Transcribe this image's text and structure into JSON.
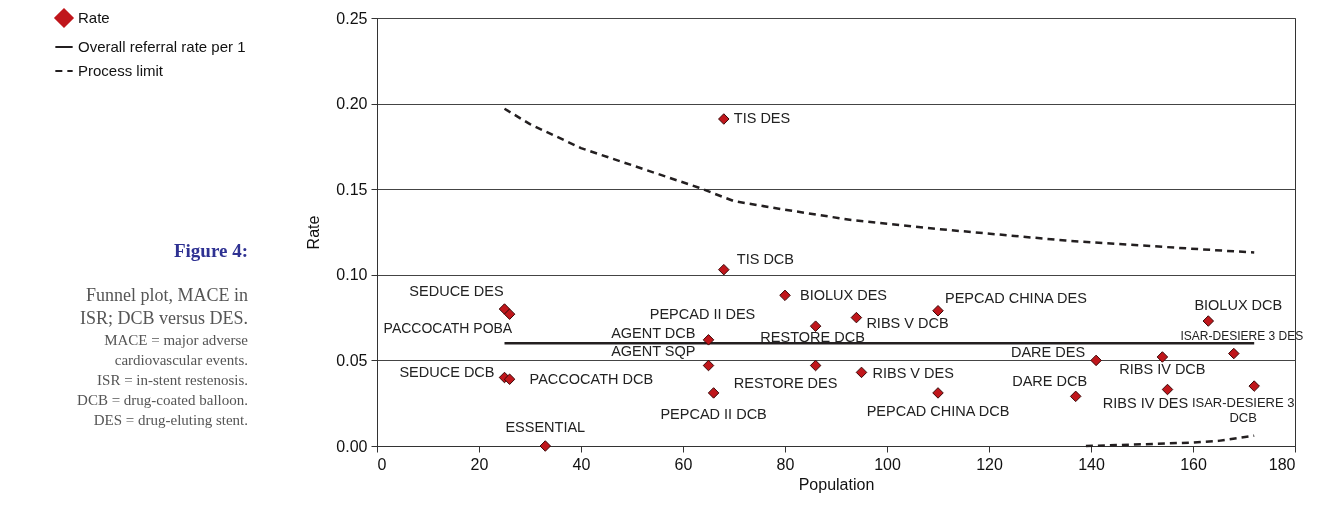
{
  "chart_data": {
    "type": "scatter",
    "title": "Figure 4:",
    "subtitle": "Funnel plot, MACE in ISR; DCB versus DES.",
    "xlabel": "Population",
    "ylabel": "Rate",
    "annotations": [
      {
        "text": "TIS DES",
        "x": 68,
        "y": 0.191
      },
      {
        "text": "TIS DCB",
        "x": 68,
        "y": 0.103
      },
      {
        "text": "SEDUCE DES",
        "x": 25,
        "y": 0.08
      },
      {
        "text": "PACCOCATH POBA",
        "x": 26,
        "y": 0.077
      },
      {
        "text": "SEDUCE DCB",
        "x": 25,
        "y": 0.04
      },
      {
        "text": "PACCOCATH DCB",
        "x": 26,
        "y": 0.039
      },
      {
        "text": "ESSENTIAL",
        "x": 33,
        "y": 0.0
      },
      {
        "text": "PEPCAD II DES",
        "x": 65,
        "y": 0.062
      },
      {
        "text": "AGENT DCB",
        "x": 65,
        "y": 0.062
      },
      {
        "text": "AGENT SQP",
        "x": 65,
        "y": 0.047
      },
      {
        "text": "PEPCAD II DCB",
        "x": 66,
        "y": 0.031
      },
      {
        "text": "BIOLUX DES",
        "x": 80,
        "y": 0.088
      },
      {
        "text": "RESTORE DCB",
        "x": 86,
        "y": 0.07
      },
      {
        "text": "RESTORE DES",
        "x": 86,
        "y": 0.047
      },
      {
        "text": "PEPCAD CHINA DES",
        "x": 110,
        "y": 0.079
      },
      {
        "text": "RIBS V DCB",
        "x": 94,
        "y": 0.075
      },
      {
        "text": "RIBS V DES",
        "x": 95,
        "y": 0.043
      },
      {
        "text": "PEPCAD CHINA DCB",
        "x": 110,
        "y": 0.031
      },
      {
        "text": "DARE DES",
        "x": 141,
        "y": 0.05
      },
      {
        "text": "DARE DCB",
        "x": 137,
        "y": 0.029
      },
      {
        "text": "RIBS IV DCB",
        "x": 154,
        "y": 0.052
      },
      {
        "text": "RIBS IV DES",
        "x": 155,
        "y": 0.033
      },
      {
        "text": "BIOLUX DCB",
        "x": 163,
        "y": 0.073
      },
      {
        "text": "ISAR-DESIERE 3 DES",
        "x": 168,
        "y": 0.054
      },
      {
        "text": "ISAR-DESIERE 3 DCB",
        "x": 172,
        "y": 0.035
      },
      "MACE = major adverse cardiovascular events.",
      "ISR = in-stent restenosis.",
      "DCB = drug-coated balloon.",
      "DES = drug-eluting stent."
    ],
    "series": [
      {
        "name": "Rate",
        "color": "#c0161b",
        "marker": "diamond",
        "x": [
          68,
          68,
          25,
          26,
          25,
          26,
          33,
          65,
          65,
          66,
          80,
          86,
          86,
          110,
          94,
          95,
          110,
          141,
          137,
          154,
          155,
          163,
          168,
          172
        ],
        "values": [
          0.191,
          0.103,
          0.08,
          0.077,
          0.04,
          0.039,
          0.0,
          0.062,
          0.047,
          0.031,
          0.088,
          0.07,
          0.047,
          0.079,
          0.075,
          0.043,
          0.031,
          0.05,
          0.029,
          0.052,
          0.033,
          0.073,
          0.054,
          0.035
        ]
      },
      {
        "name": "Overall referral rate per 1",
        "type": "line",
        "color": "#231f20",
        "line_style": "solid",
        "x": [
          25,
          172
        ],
        "values": [
          0.06,
          0.06
        ]
      },
      {
        "name": "Process limit",
        "type": "line",
        "color": "#231f20",
        "line_style": "dashed",
        "x": [
          25,
          30,
          40,
          53,
          63,
          70,
          80,
          93,
          109,
          135,
          161,
          172,
          null,
          139,
          150,
          160,
          165,
          172
        ],
        "values": [
          0.197,
          0.188,
          0.174,
          0.161,
          0.151,
          0.143,
          0.138,
          0.132,
          0.127,
          0.12,
          0.115,
          0.113,
          null,
          0.0,
          0.001,
          0.002,
          0.003,
          0.006
        ]
      }
    ],
    "xlim": [
      0,
      180
    ],
    "xticks": [
      0,
      20,
      40,
      60,
      80,
      100,
      120,
      140,
      160,
      180
    ],
    "ylim": [
      0,
      0.25
    ],
    "yticks": [
      {
        "value": 0,
        "label": "0.00"
      },
      {
        "value": 0.05,
        "label": "0.05"
      },
      {
        "value": 0.1,
        "label": "0.10"
      },
      {
        "value": 0.15,
        "label": "0.15"
      },
      {
        "value": 0.2,
        "label": "0.20"
      },
      {
        "value": 0.25,
        "label": "0.25"
      }
    ],
    "grid": "y",
    "legend": "top left"
  }
}
